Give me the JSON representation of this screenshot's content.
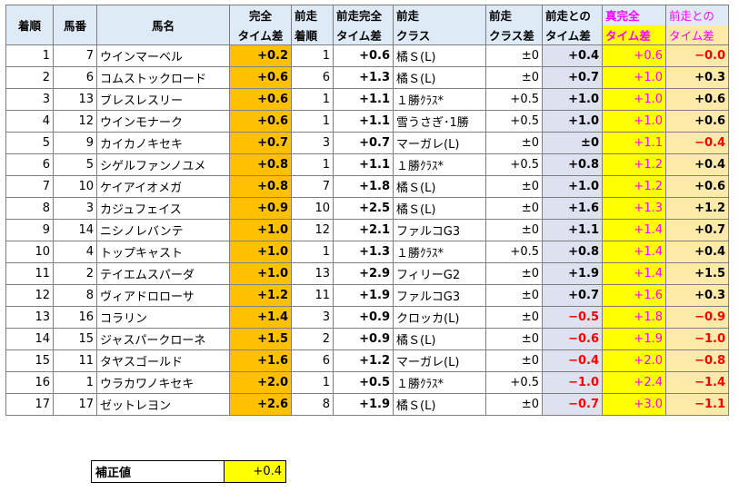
{
  "headers": {
    "finish": "着順",
    "number": "馬番",
    "name": "馬名",
    "full_diff_1": "完全",
    "full_diff_2": "タイム差",
    "prev_1": "前走",
    "prev_2": "着順",
    "prev_full_1": "前走完全",
    "prev_full_2": "タイム差",
    "prev_class_1": "前走",
    "prev_class_2": "クラス",
    "class_diff_1": "前走",
    "class_diff_2": "クラス差",
    "vs_prev_1": "前走との",
    "vs_prev_2": "タイム差",
    "true_full_1": "真完全",
    "true_full_2": "タイム差",
    "true_vs_1": "前走との",
    "true_vs_2": "タイム差"
  },
  "rows": [
    {
      "finish": "1",
      "number": "7",
      "name": "ウインマーベル",
      "full": "+0.2",
      "prev": "1",
      "prev_full": "+0.6",
      "prev_class": "橘Ｓ(L)",
      "class_diff": "±0",
      "vs_prev": "+0.4",
      "true_full": "+0.6",
      "true_vs": "−0.0"
    },
    {
      "finish": "2",
      "number": "6",
      "name": "コムストックロード",
      "full": "+0.6",
      "prev": "6",
      "prev_full": "+1.3",
      "prev_class": "橘Ｓ(L)",
      "class_diff": "±0",
      "vs_prev": "+0.7",
      "true_full": "+1.0",
      "true_vs": "+0.3"
    },
    {
      "finish": "3",
      "number": "13",
      "name": "ブレスレスリー",
      "full": "+0.6",
      "prev": "1",
      "prev_full": "+1.1",
      "prev_class": "１勝ｸﾗｽ*",
      "class_diff": "+0.5",
      "vs_prev": "+1.0",
      "true_full": "+1.0",
      "true_vs": "+0.6"
    },
    {
      "finish": "4",
      "number": "12",
      "name": "ウインモナーク",
      "full": "+0.6",
      "prev": "1",
      "prev_full": "+1.1",
      "prev_class": "雪うさぎ･1勝",
      "class_diff": "+0.5",
      "vs_prev": "+1.0",
      "true_full": "+1.0",
      "true_vs": "+0.6"
    },
    {
      "finish": "5",
      "number": "9",
      "name": "カイカノキセキ",
      "full": "+0.7",
      "prev": "3",
      "prev_full": "+0.7",
      "prev_class": "マーガレ(L)",
      "class_diff": "±0",
      "vs_prev": "±0",
      "true_full": "+1.1",
      "true_vs": "−0.4"
    },
    {
      "finish": "6",
      "number": "5",
      "name": "シゲルファンノユメ",
      "full": "+0.8",
      "prev": "1",
      "prev_full": "+1.1",
      "prev_class": "１勝ｸﾗｽ*",
      "class_diff": "+0.5",
      "vs_prev": "+0.8",
      "true_full": "+1.2",
      "true_vs": "+0.4"
    },
    {
      "finish": "7",
      "number": "10",
      "name": "ケイアイオメガ",
      "full": "+0.8",
      "prev": "7",
      "prev_full": "+1.8",
      "prev_class": "橘Ｓ(L)",
      "class_diff": "±0",
      "vs_prev": "+1.0",
      "true_full": "+1.2",
      "true_vs": "+0.6"
    },
    {
      "finish": "8",
      "number": "3",
      "name": "カジュフェイス",
      "full": "+0.9",
      "prev": "10",
      "prev_full": "+2.5",
      "prev_class": "橘Ｓ(L)",
      "class_diff": "±0",
      "vs_prev": "+1.6",
      "true_full": "+1.3",
      "true_vs": "+1.2"
    },
    {
      "finish": "9",
      "number": "14",
      "name": "ニシノレバンテ",
      "full": "+1.0",
      "prev": "12",
      "prev_full": "+2.1",
      "prev_class": "ファルコG3",
      "class_diff": "±0",
      "vs_prev": "+1.1",
      "true_full": "+1.4",
      "true_vs": "+0.7"
    },
    {
      "finish": "10",
      "number": "4",
      "name": "トップキャスト",
      "full": "+1.0",
      "prev": "1",
      "prev_full": "+1.3",
      "prev_class": "１勝ｸﾗｽ*",
      "class_diff": "+0.5",
      "vs_prev": "+0.8",
      "true_full": "+1.4",
      "true_vs": "+0.4"
    },
    {
      "finish": "11",
      "number": "2",
      "name": "テイエムスパーダ",
      "full": "+1.0",
      "prev": "13",
      "prev_full": "+2.9",
      "prev_class": "フィリーG2",
      "class_diff": "±0",
      "vs_prev": "+1.9",
      "true_full": "+1.4",
      "true_vs": "+1.5"
    },
    {
      "finish": "12",
      "number": "8",
      "name": "ヴィアドロローサ",
      "full": "+1.2",
      "prev": "11",
      "prev_full": "+1.9",
      "prev_class": "ファルコG3",
      "class_diff": "±0",
      "vs_prev": "+0.7",
      "true_full": "+1.6",
      "true_vs": "+0.3"
    },
    {
      "finish": "13",
      "number": "16",
      "name": "コラリン",
      "full": "+1.4",
      "prev": "3",
      "prev_full": "+0.9",
      "prev_class": "クロッカ(L)",
      "class_diff": "±0",
      "vs_prev": "−0.5",
      "true_full": "+1.8",
      "true_vs": "−0.9"
    },
    {
      "finish": "14",
      "number": "15",
      "name": "ジャスパークローネ",
      "full": "+1.5",
      "prev": "2",
      "prev_full": "+0.9",
      "prev_class": "橘Ｓ(L)",
      "class_diff": "±0",
      "vs_prev": "−0.6",
      "true_full": "+1.9",
      "true_vs": "−1.0"
    },
    {
      "finish": "15",
      "number": "11",
      "name": "タヤスゴールド",
      "full": "+1.6",
      "prev": "6",
      "prev_full": "+1.2",
      "prev_class": "マーガレ(L)",
      "class_diff": "±0",
      "vs_prev": "−0.4",
      "true_full": "+2.0",
      "true_vs": "−0.8"
    },
    {
      "finish": "16",
      "number": "1",
      "name": "ウラカワノキセキ",
      "full": "+2.0",
      "prev": "1",
      "prev_full": "+0.5",
      "prev_class": "１勝ｸﾗｽ*",
      "class_diff": "+0.5",
      "vs_prev": "−1.0",
      "true_full": "+2.4",
      "true_vs": "−1.4"
    },
    {
      "finish": "17",
      "number": "17",
      "name": "ゼットレヨン",
      "full": "+2.6",
      "prev": "8",
      "prev_full": "+1.9",
      "prev_class": "橘Ｓ(L)",
      "class_diff": "±0",
      "vs_prev": "−0.7",
      "true_full": "+3.0",
      "true_vs": "−1.1"
    }
  ],
  "correction": {
    "label": "補正値",
    "value": "+0.4"
  },
  "colors": {
    "orange": "#ffc000",
    "lavender": "#dde1f0",
    "yellow": "#ffff00",
    "peach": "#fde9a8",
    "magenta": "#ff00ff",
    "red": "#ff0000"
  }
}
